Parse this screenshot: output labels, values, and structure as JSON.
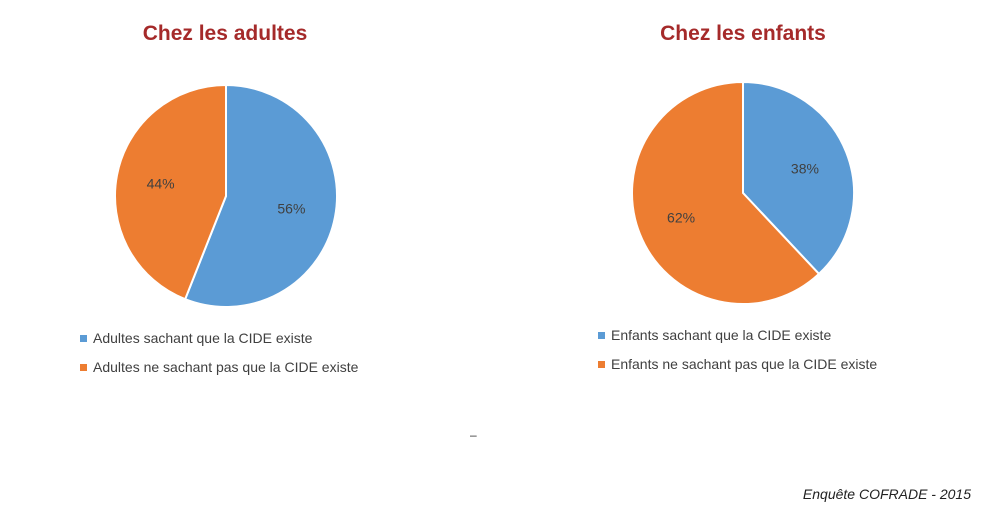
{
  "chart_data": [
    {
      "type": "pie",
      "title": "Chez les adultes",
      "slices": [
        {
          "label": "Adultes sachant que la CIDE existe",
          "value": 56,
          "display": "56%",
          "color": "#5b9bd5"
        },
        {
          "label": "Adultes ne sachant pas que la CIDE existe",
          "value": 44,
          "display": "44%",
          "color": "#ed7d31"
        }
      ],
      "legend_position": "bottom-left"
    },
    {
      "type": "pie",
      "title": "Chez les enfants",
      "slices": [
        {
          "label": "Enfants sachant que la CIDE existe",
          "value": 38,
          "display": "38%",
          "color": "#5b9bd5"
        },
        {
          "label": "Enfants ne sachant pas que la CIDE existe",
          "value": 62,
          "display": "62%",
          "color": "#ed7d31"
        }
      ],
      "legend_position": "bottom-left"
    }
  ],
  "separator": "–",
  "footer": "Enquête COFRADE - 2015"
}
